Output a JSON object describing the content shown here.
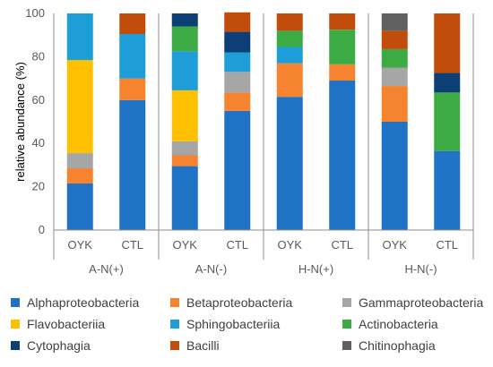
{
  "chart_data": {
    "type": "bar",
    "stacked": true,
    "ylabel": "relative abundance (%)",
    "ylim": [
      0,
      100
    ],
    "yticks": [
      0,
      20,
      40,
      60,
      80,
      100
    ],
    "categories": [
      "OYK",
      "CTL",
      "OYK",
      "CTL",
      "OYK",
      "CTL",
      "OYK",
      "CTL"
    ],
    "groups": [
      {
        "label": "A-N(+)",
        "categories": [
          "OYK",
          "CTL"
        ]
      },
      {
        "label": "A-N(-)",
        "categories": [
          "OYK",
          "CTL"
        ]
      },
      {
        "label": "H-N(+)",
        "categories": [
          "OYK",
          "CTL"
        ]
      },
      {
        "label": "H-N(-)",
        "categories": [
          "OYK",
          "CTL"
        ]
      }
    ],
    "legend_position": "bottom",
    "series": [
      {
        "name": "Alphaproteobacteria",
        "color": "#1f72c6",
        "values": [
          21.5,
          60,
          29.5,
          55,
          61.5,
          69,
          50,
          36.5
        ]
      },
      {
        "name": "Betaproteobacteria",
        "color": "#f5832f",
        "values": [
          7,
          10,
          5,
          8.5,
          15.5,
          7.5,
          16.5,
          0
        ]
      },
      {
        "name": "Gammaproteobacteria",
        "color": "#a6a6a6",
        "values": [
          7,
          0,
          6.5,
          9.5,
          0,
          0,
          8.5,
          0
        ]
      },
      {
        "name": "Flavobacteriia",
        "color": "#fec000",
        "values": [
          43,
          0,
          23.5,
          0,
          0,
          0,
          0,
          0
        ]
      },
      {
        "name": "Sphingobacteriia",
        "color": "#1e9ed9",
        "values": [
          21.5,
          20.5,
          18,
          9,
          7.5,
          0,
          0,
          0
        ]
      },
      {
        "name": "Actinobacteria",
        "color": "#3dab44",
        "values": [
          0,
          0,
          11.5,
          0,
          7.5,
          16,
          8.5,
          27
        ]
      },
      {
        "name": "Cytophagia",
        "color": "#0c3f76",
        "values": [
          0,
          0,
          6,
          9.5,
          0,
          0,
          0,
          9
        ]
      },
      {
        "name": "Bacilli",
        "color": "#c24c0c",
        "values": [
          0,
          9.5,
          0,
          9,
          8,
          7.5,
          8.5,
          27.5
        ]
      },
      {
        "name": "Chitinophagia",
        "color": "#606060",
        "values": [
          0,
          0,
          0,
          0,
          0,
          0,
          8,
          0
        ]
      }
    ]
  }
}
